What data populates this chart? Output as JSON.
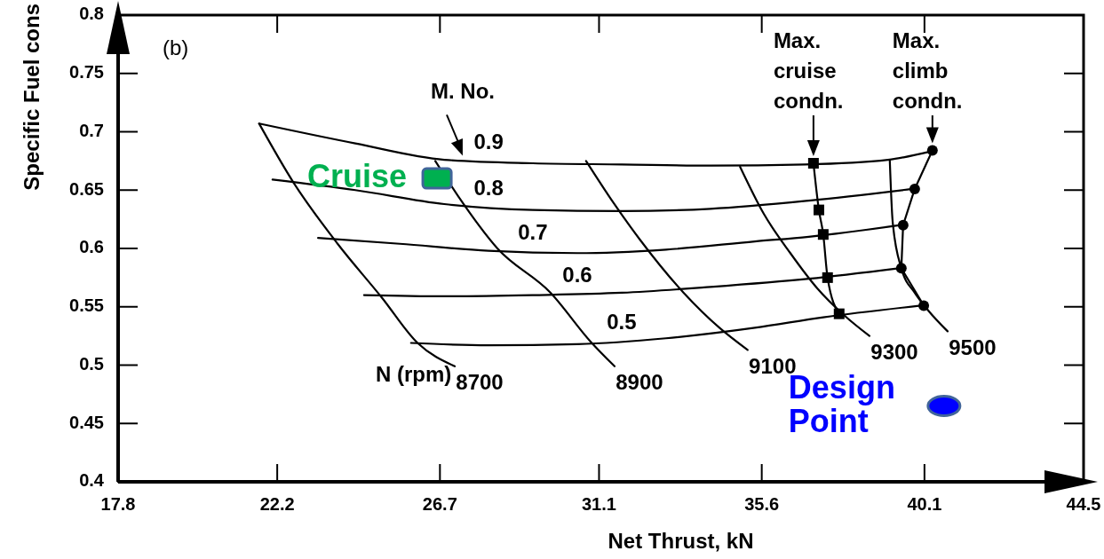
{
  "chart_data": {
    "type": "line",
    "xlabel": "Net Thrust, kN",
    "ylabel": "Specific Fuel cons",
    "xlim": [
      17.8,
      44.5
    ],
    "ylim": [
      0.4,
      0.8
    ],
    "xticks": [
      17.8,
      22.2,
      26.7,
      31.1,
      35.6,
      40.1,
      44.5
    ],
    "yticks": [
      0.4,
      0.45,
      0.5,
      0.55,
      0.6,
      0.65,
      0.7,
      0.75,
      0.8
    ],
    "line_style": "solid",
    "series": [
      {
        "name": "0.9",
        "color": "#000000",
        "x": [
          21.7,
          24.36,
          26.82,
          29.27,
          31.73,
          34.18,
          36.8,
          39.09,
          40.25
        ],
        "values": [
          0.707,
          0.69,
          0.676,
          0.673,
          0.672,
          0.671,
          0.672,
          0.676,
          0.683
        ]
      },
      {
        "name": "0.8",
        "color": "#000000",
        "x": [
          22.07,
          24.36,
          26.82,
          29.27,
          31.73,
          34.18,
          36.9,
          39.76
        ],
        "values": [
          0.659,
          0.65,
          0.638,
          0.633,
          0.632,
          0.634,
          0.641,
          0.651
        ]
      },
      {
        "name": "0.7",
        "color": "#000000",
        "x": [
          23.33,
          25.59,
          28.04,
          30.5,
          32.95,
          35.41,
          36.9,
          39.44
        ],
        "values": [
          0.609,
          0.604,
          0.598,
          0.596,
          0.599,
          0.606,
          0.61,
          0.62
        ]
      },
      {
        "name": "0.6",
        "color": "#000000",
        "x": [
          24.6,
          26.82,
          29.27,
          31.73,
          34.18,
          36.9,
          39.39
        ],
        "values": [
          0.56,
          0.559,
          0.56,
          0.562,
          0.567,
          0.574,
          0.583
        ]
      },
      {
        "name": "0.5",
        "color": "#000000",
        "x": [
          25.9,
          28.04,
          30.5,
          32.95,
          35.41,
          37.3,
          40.0
        ],
        "values": [
          0.519,
          0.517,
          0.518,
          0.523,
          0.532,
          0.541,
          0.551
        ]
      },
      {
        "name": "8700",
        "color": "#000000",
        "x": [
          21.7,
          22.64,
          23.87,
          25.09,
          26.08,
          27.11
        ],
        "values": [
          0.707,
          0.657,
          0.604,
          0.558,
          0.519,
          0.499
        ]
      },
      {
        "name": "8900",
        "color": "#000000",
        "x": [
          26.57,
          27.2,
          28.29,
          29.76,
          30.87,
          31.53
        ],
        "values": [
          0.675,
          0.645,
          0.6,
          0.562,
          0.52,
          0.499
        ]
      },
      {
        "name": "9100",
        "color": "#000000",
        "x": [
          30.74,
          31.48,
          32.22,
          33.44,
          34.43,
          35.21
        ],
        "values": [
          0.675,
          0.64,
          0.608,
          0.562,
          0.532,
          0.513
        ]
      },
      {
        "name": "9300",
        "color": "#000000",
        "x": [
          35.0,
          35.65,
          36.39,
          37.13,
          37.87,
          38.58
        ],
        "values": [
          0.67,
          0.63,
          0.596,
          0.566,
          0.543,
          0.525
        ]
      },
      {
        "name": "9500",
        "color": "#000000",
        "x": [
          39.14,
          39.22,
          39.46,
          39.83,
          40.2,
          40.74
        ],
        "values": [
          0.676,
          0.623,
          0.583,
          0.562,
          0.547,
          0.529
        ]
      },
      {
        "color": "#000000",
        "marker": "square",
        "x": [
          37.03,
          37.18,
          37.3,
          37.42,
          37.74
        ],
        "values": [
          0.673,
          0.633,
          0.612,
          0.575,
          0.544
        ]
      },
      {
        "color": "#000000",
        "marker": "circle",
        "x": [
          40.32,
          39.83,
          39.51,
          39.46,
          40.08
        ],
        "values": [
          0.684,
          0.651,
          0.62,
          0.583,
          0.551
        ]
      },
      {
        "type": "scatter",
        "name": "Cruise",
        "color": "#00b050",
        "marker": "square",
        "x": [
          26.62
        ],
        "values": [
          0.66
        ]
      },
      {
        "type": "scatter",
        "name": "Design Point",
        "color": "#0000ff",
        "marker": "circle",
        "x": [
          40.64
        ],
        "values": [
          0.465
        ]
      }
    ],
    "annotations": [
      "(b)",
      "N (rpm)",
      {
        "text": "M. No.",
        "x": 27.33,
        "y": 0.675
      },
      {
        "text": "Max. cruise condn.",
        "x": 37.03,
        "y": 0.673
      },
      {
        "text": "Max. climb condn.",
        "x": 40.32,
        "y": 0.684
      }
    ]
  }
}
